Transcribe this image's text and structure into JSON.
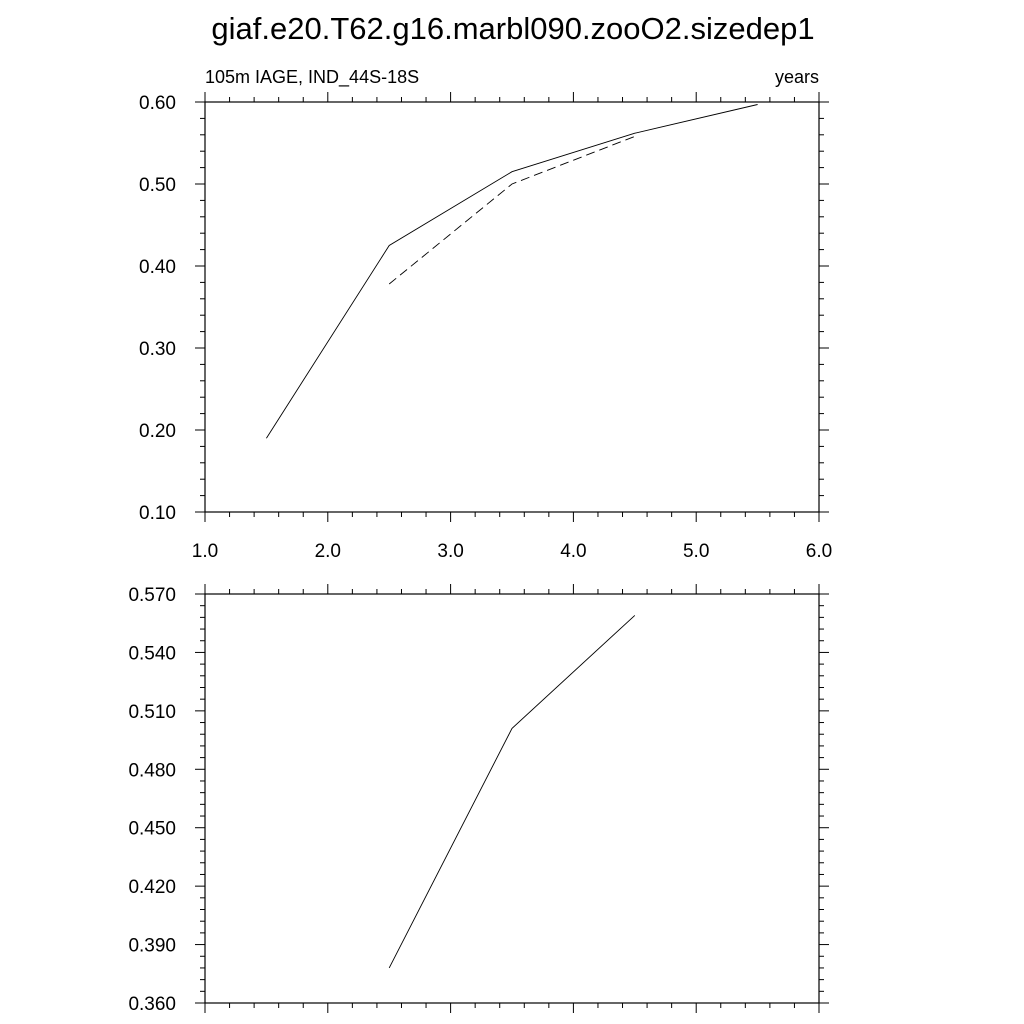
{
  "figure": {
    "title": "giaf.e20.T62.g16.marbl090.zooO2.sizedep1"
  },
  "chart_data": [
    {
      "type": "line",
      "subtitle_left": "105m IAGE, IND_44S-18S",
      "subtitle_right": "years",
      "xlim": [
        1.0,
        6.0
      ],
      "ylim": [
        0.1,
        0.6
      ],
      "x_ticks": [
        1.0,
        2.0,
        3.0,
        4.0,
        5.0,
        6.0
      ],
      "x_tick_labels": [
        "1.0",
        "2.0",
        "3.0",
        "4.0",
        "5.0",
        "6.0"
      ],
      "y_ticks": [
        0.1,
        0.2,
        0.3,
        0.4,
        0.5,
        0.6
      ],
      "y_tick_labels": [
        "0.10",
        "0.20",
        "0.30",
        "0.40",
        "0.50",
        "0.60"
      ],
      "grid": false,
      "series": [
        {
          "style": "solid",
          "color": "#000000",
          "x": [
            1.5,
            2.5,
            3.5,
            4.5,
            5.5
          ],
          "y": [
            0.19,
            0.425,
            0.515,
            0.562,
            0.597
          ]
        },
        {
          "style": "dashed",
          "color": "#000000",
          "x": [
            2.5,
            3.5,
            4.5
          ],
          "y": [
            0.378,
            0.5,
            0.558
          ]
        }
      ]
    },
    {
      "type": "line",
      "xlim": [
        1.0,
        6.0
      ],
      "ylim": [
        0.36,
        0.57
      ],
      "x_ticks": [
        1.0,
        2.0,
        3.0,
        4.0,
        5.0,
        6.0
      ],
      "x_tick_labels": [],
      "y_ticks": [
        0.36,
        0.39,
        0.42,
        0.45,
        0.48,
        0.51,
        0.54,
        0.57
      ],
      "y_tick_labels": [
        "0.360",
        "0.390",
        "0.420",
        "0.450",
        "0.480",
        "0.510",
        "0.540",
        "0.570"
      ],
      "grid": false,
      "series": [
        {
          "style": "solid",
          "color": "#000000",
          "x": [
            2.5,
            3.5,
            4.5
          ],
          "y": [
            0.378,
            0.501,
            0.559
          ]
        }
      ]
    }
  ]
}
